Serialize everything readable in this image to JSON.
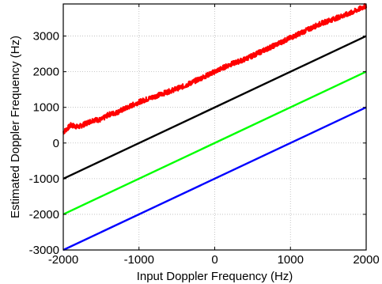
{
  "chart_data": {
    "type": "line",
    "title": "",
    "xlabel": "Input Doppler Frequency (Hz)",
    "ylabel": "Estimated Doppler Frequency (Hz)",
    "xlim": [
      -2000,
      2000
    ],
    "ylim": [
      -3000,
      3900
    ],
    "xticks": [
      -2000,
      -1000,
      0,
      1000,
      2000
    ],
    "yticks": [
      -3000,
      -2000,
      -1000,
      0,
      1000,
      2000,
      3000
    ],
    "xtick_labels": [
      "-2000",
      "-1000",
      "0",
      "1000",
      "2000"
    ],
    "ytick_labels": [
      "-3000",
      "-2000",
      "-1000",
      "0",
      "1000",
      "2000",
      "3000"
    ],
    "grid": true,
    "grid_style": "dotted",
    "legend": "none",
    "series": [
      {
        "color": "#ff0000",
        "style": "noisy",
        "x": [
          -2000,
          -1900,
          -1800,
          -1700,
          -1600,
          -1500,
          -1400,
          -1300,
          -1200,
          -1100,
          -1000,
          -800,
          -600,
          -400,
          -200,
          0,
          200,
          400,
          600,
          800,
          1000,
          1200,
          1400,
          1600,
          1800,
          2000
        ],
        "y": [
          300,
          500,
          450,
          550,
          650,
          650,
          800,
          850,
          950,
          1050,
          1150,
          1300,
          1450,
          1600,
          1800,
          2000,
          2200,
          2350,
          2550,
          2750,
          2950,
          3150,
          3350,
          3500,
          3650,
          3850
        ]
      },
      {
        "color": "#000000",
        "style": "line",
        "x": [
          -2000,
          2000
        ],
        "y": [
          -1000,
          3000
        ]
      },
      {
        "color": "#00ff00",
        "style": "line",
        "x": [
          -2000,
          2000
        ],
        "y": [
          -2000,
          2000
        ]
      },
      {
        "color": "#0000ff",
        "style": "line",
        "x": [
          -2000,
          2000
        ],
        "y": [
          -3000,
          1000
        ]
      }
    ]
  }
}
